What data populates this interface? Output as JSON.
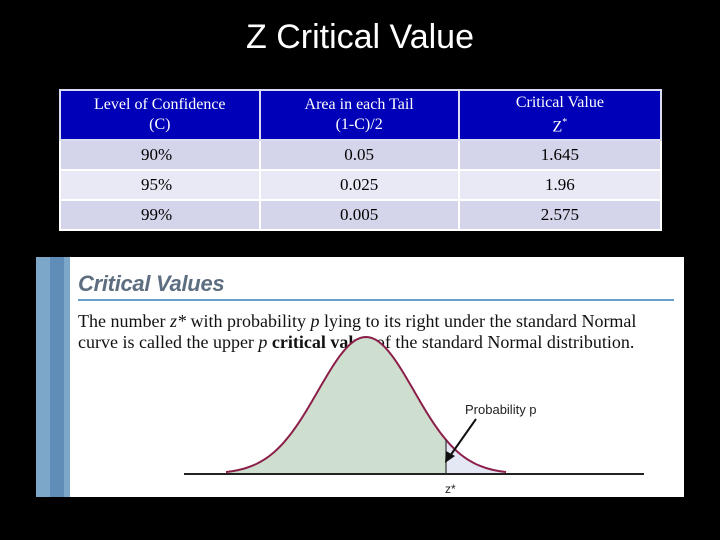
{
  "title": "Z Critical Value",
  "table": {
    "headers": [
      [
        "Level of Confidence",
        "(C)"
      ],
      [
        "Area in each Tail",
        "(1-C)/2"
      ],
      [
        "Critical Value",
        "Z",
        "*"
      ]
    ],
    "rows": [
      [
        "90%",
        "0.05",
        "1.645"
      ],
      [
        "95%",
        "0.025",
        "1.96"
      ],
      [
        "99%",
        "0.005",
        "2.575"
      ]
    ]
  },
  "figure": {
    "heading": "Critical Values",
    "text_parts": [
      "The number ",
      "z*",
      " with probability ",
      "p",
      " lying to its right under the standard Normal curve is called the upper ",
      "p",
      " critical value",
      " of the standard Normal distribution."
    ],
    "probability_label": "Probability p",
    "z_label": "z*",
    "colors": {
      "curve": "#8b1f4a",
      "shade_main": "#cfdfcf",
      "shade_tail": "#e4e8f4",
      "sidebar": "#7da7c9"
    }
  }
}
